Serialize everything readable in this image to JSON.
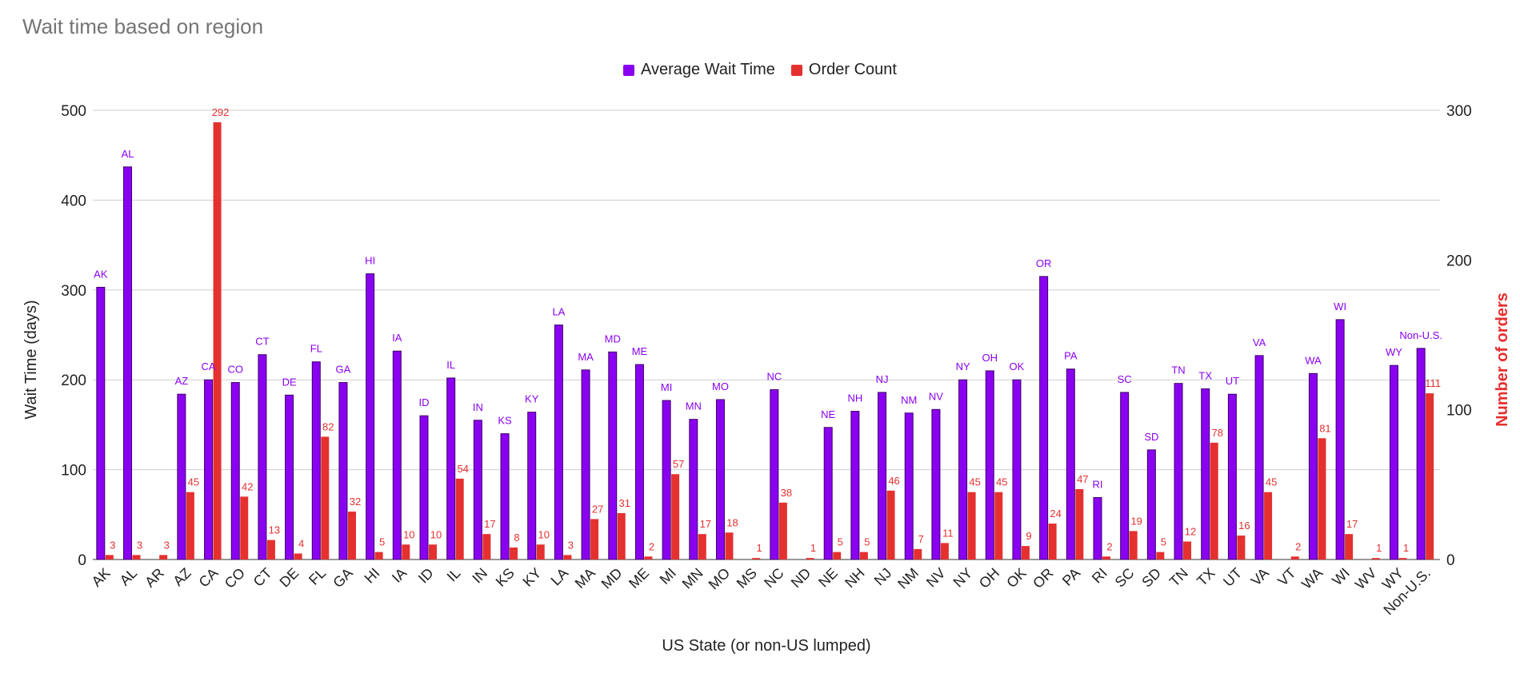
{
  "chart_data": {
    "type": "bar",
    "title": "Wait time based on region",
    "xlabel": "US State (or non-US lumped)",
    "ylabel": "Wait Time (days)",
    "y2label": "Number of orders",
    "ylim": [
      0,
      500
    ],
    "y2lim": [
      0,
      300
    ],
    "yticks": [
      "0",
      "100",
      "200",
      "300",
      "400",
      "500"
    ],
    "y2ticks": [
      "0",
      "100",
      "200",
      "300"
    ],
    "grid": true,
    "legend_position": "top",
    "categories": [
      "AK",
      "AL",
      "AR",
      "AZ",
      "CA",
      "CO",
      "CT",
      "DE",
      "FL",
      "GA",
      "HI",
      "IA",
      "ID",
      "IL",
      "IN",
      "KS",
      "KY",
      "LA",
      "MA",
      "MD",
      "ME",
      "MI",
      "MN",
      "MO",
      "MS",
      "NC",
      "ND",
      "NE",
      "NH",
      "NJ",
      "NM",
      "NV",
      "NY",
      "OH",
      "OK",
      "OR",
      "PA",
      "RI",
      "SC",
      "SD",
      "TN",
      "TX",
      "UT",
      "VA",
      "VT",
      "WA",
      "WI",
      "WV",
      "WY",
      "Non-U.S."
    ],
    "series": [
      {
        "name": "Average Wait Time",
        "axis": "left",
        "color": "#8a00f0",
        "values": [
          303,
          437,
          null,
          184,
          200,
          197,
          228,
          183,
          220,
          197,
          318,
          232,
          160,
          202,
          155,
          140,
          164,
          261,
          211,
          231,
          217,
          177,
          156,
          178,
          null,
          189,
          null,
          147,
          165,
          186,
          163,
          167,
          200,
          210,
          200,
          315,
          212,
          69,
          186,
          122,
          196,
          190,
          184,
          227,
          null,
          207,
          267,
          null,
          216,
          235
        ],
        "data_labels": [
          "AK",
          "AL",
          "",
          "AZ",
          "CA",
          "CO",
          "CT",
          "DE",
          "FL",
          "GA",
          "HI",
          "IA",
          "ID",
          "IL",
          "IN",
          "KS",
          "KY",
          "LA",
          "MA",
          "MD",
          "ME",
          "MI",
          "MN",
          "MO",
          "",
          "NC",
          "",
          "NE",
          "NH",
          "NJ",
          "NM",
          "NV",
          "NY",
          "OH",
          "OK",
          "OR",
          "PA",
          "RI",
          "SC",
          "SD",
          "TN",
          "TX",
          "UT",
          "VA",
          "",
          "WA",
          "WI",
          "",
          "WY",
          "Non-U.S."
        ]
      },
      {
        "name": "Order Count",
        "axis": "right",
        "color": "#e53030",
        "values": [
          3,
          3,
          3,
          45,
          292,
          42,
          13,
          4,
          82,
          32,
          5,
          10,
          10,
          54,
          17,
          8,
          10,
          3,
          27,
          31,
          2,
          57,
          17,
          18,
          1,
          38,
          1,
          5,
          5,
          46,
          7,
          11,
          45,
          45,
          9,
          24,
          47,
          2,
          19,
          5,
          12,
          78,
          16,
          45,
          2,
          81,
          17,
          1,
          1,
          111
        ],
        "data_labels": [
          "3",
          "3",
          "3",
          "45",
          "292",
          "42",
          "13",
          "4",
          "82",
          "32",
          "5",
          "10",
          "10",
          "54",
          "17",
          "8",
          "10",
          "3",
          "27",
          "31",
          "2",
          "57",
          "17",
          "18",
          "1",
          "38",
          "1",
          "5",
          "5",
          "46",
          "7",
          "11",
          "45",
          "45",
          "9",
          "24",
          "47",
          "2",
          "19",
          "5",
          "12",
          "78",
          "16",
          "45",
          "2",
          "81",
          "17",
          "1",
          "1",
          "111"
        ]
      }
    ]
  }
}
